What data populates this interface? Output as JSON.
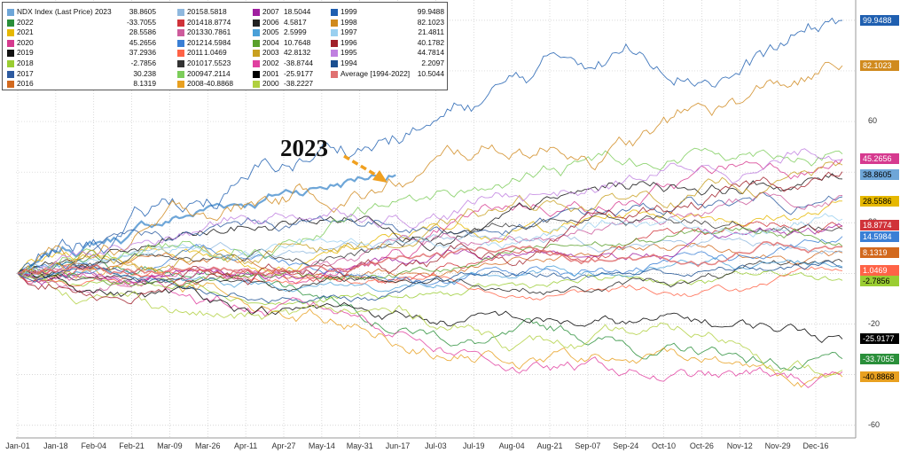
{
  "chart_data": {
    "type": "line",
    "title": "",
    "xlabel": "",
    "ylabel": "",
    "annotation": "2023",
    "ylim": [
      -65,
      108
    ],
    "yticks": [
      -60,
      -20,
      20,
      60
    ],
    "xticks": [
      "Jan-01",
      "Jan-18",
      "Feb-04",
      "Feb-21",
      "Mar-09",
      "Mar-26",
      "Apr-11",
      "Apr-27",
      "May-14",
      "May-31",
      "Jun-17",
      "Jul-03",
      "Jul-19",
      "Aug-04",
      "Aug-21",
      "Sep-07",
      "Sep-24",
      "Oct-10",
      "Oct-26",
      "Nov-12",
      "Nov-29",
      "Dec-16"
    ],
    "legend_position": "top-left",
    "series": [
      {
        "name": "NDX Index (Last Price) 2023",
        "final": 38.8605,
        "color": "#6ea6d8",
        "legend_col": 0,
        "end_frac": 0.46
      },
      {
        "name": "2022",
        "final": -33.7055,
        "color": "#2a8f3a",
        "legend_col": 0
      },
      {
        "name": "2021",
        "final": 28.5586,
        "color": "#e6b800",
        "legend_col": 0
      },
      {
        "name": "2020",
        "final": 45.2656,
        "color": "#d63a8f",
        "legend_col": 0
      },
      {
        "name": "2019",
        "final": 37.2936,
        "color": "#111111",
        "legend_col": 0
      },
      {
        "name": "2018",
        "final": -2.7856,
        "color": "#9acd32",
        "legend_col": 0
      },
      {
        "name": "2017",
        "final": 30.238,
        "color": "#2c5aa0",
        "legend_col": 0
      },
      {
        "name": "2016",
        "final": 8.1319,
        "color": "#d2691e",
        "legend_col": 0
      },
      {
        "name": "2015",
        "final": 8.5818,
        "color": "#8fb8de",
        "legend_col": 1
      },
      {
        "name": "2014",
        "final": 18.8774,
        "color": "#d0333a",
        "legend_col": 1
      },
      {
        "name": "2013",
        "final": 30.7861,
        "color": "#cd5c9c",
        "legend_col": 1
      },
      {
        "name": "2012",
        "final": 14.5984,
        "color": "#3a7fd5",
        "legend_col": 1
      },
      {
        "name": "2011",
        "final": 1.0469,
        "color": "#ff6347",
        "legend_col": 1
      },
      {
        "name": "2010",
        "final": 17.5523,
        "color": "#333333",
        "legend_col": 1
      },
      {
        "name": "2009",
        "final": 47.2114,
        "color": "#7ccd5a",
        "legend_col": 1
      },
      {
        "name": "2008",
        "final": -40.8868,
        "color": "#e8a020",
        "legend_col": 1
      },
      {
        "name": "2007",
        "final": 18.5044,
        "color": "#a020a0",
        "legend_col": 2
      },
      {
        "name": "2006",
        "final": 4.5817,
        "color": "#222222",
        "legend_col": 2
      },
      {
        "name": "2005",
        "final": 2.5999,
        "color": "#4aa0d8",
        "legend_col": 2
      },
      {
        "name": "2004",
        "final": 10.7648,
        "color": "#5aa02c",
        "legend_col": 2
      },
      {
        "name": "2003",
        "final": 42.8132,
        "color": "#c8a020",
        "legend_col": 2
      },
      {
        "name": "2002",
        "final": -38.8744,
        "color": "#e040a0",
        "legend_col": 2
      },
      {
        "name": "2001",
        "final": -25.9177,
        "color": "#000000",
        "legend_col": 2
      },
      {
        "name": "2000",
        "final": -38.2227,
        "color": "#b0d040",
        "legend_col": 2
      },
      {
        "name": "1999",
        "final": 99.9488,
        "color": "#1f5fb0",
        "legend_col": 3
      },
      {
        "name": "1998",
        "final": 82.1023,
        "color": "#d08a1e",
        "legend_col": 3
      },
      {
        "name": "1997",
        "final": 21.4811,
        "color": "#9ad0f0",
        "legend_col": 3
      },
      {
        "name": "1996",
        "final": 40.1782,
        "color": "#a0202a",
        "legend_col": 3
      },
      {
        "name": "1995",
        "final": 44.7814,
        "color": "#c080e0",
        "legend_col": 3
      },
      {
        "name": "1994",
        "final": 2.2097,
        "color": "#1a4f90",
        "legend_col": 3
      },
      {
        "name": "Average [1994-2022]",
        "final": 10.5044,
        "color": "#e07070",
        "legend_col": 3
      }
    ],
    "right_labels": [
      {
        "text": "99.9488",
        "bg": "#1f5fb0",
        "fg": "#ffffff",
        "value": 99.9488
      },
      {
        "text": "82.1023",
        "bg": "#d08a1e",
        "fg": "#ffffff",
        "value": 82.1023
      },
      {
        "text": "45.2656",
        "bg": "#d63a8f",
        "fg": "#ffffff",
        "value": 45.2656
      },
      {
        "text": "38.8605",
        "bg": "#6ea6d8",
        "fg": "#000000",
        "value": 38.8605
      },
      {
        "text": "28.5586",
        "bg": "#e6b800",
        "fg": "#000000",
        "value": 28.5586
      },
      {
        "text": "18.8774",
        "bg": "#d0333a",
        "fg": "#ffffff",
        "value": 18.8774
      },
      {
        "text": "14.5984",
        "bg": "#3a7fd5",
        "fg": "#ffffff",
        "value": 14.5984
      },
      {
        "text": "8.1319",
        "bg": "#d2691e",
        "fg": "#ffffff",
        "value": 8.1319
      },
      {
        "text": "1.0469",
        "bg": "#ff6347",
        "fg": "#ffffff",
        "value": 1.0469
      },
      {
        "text": "-2.7856",
        "bg": "#9acd32",
        "fg": "#000000",
        "value": -2.7856
      },
      {
        "text": "-25.9177",
        "bg": "#000000",
        "fg": "#ffffff",
        "value": -25.9177
      },
      {
        "text": "-33.7055",
        "bg": "#2a8f3a",
        "fg": "#ffffff",
        "value": -33.7055
      },
      {
        "text": "-40.8868",
        "bg": "#e8a020",
        "fg": "#000000",
        "value": -40.8868
      }
    ]
  }
}
